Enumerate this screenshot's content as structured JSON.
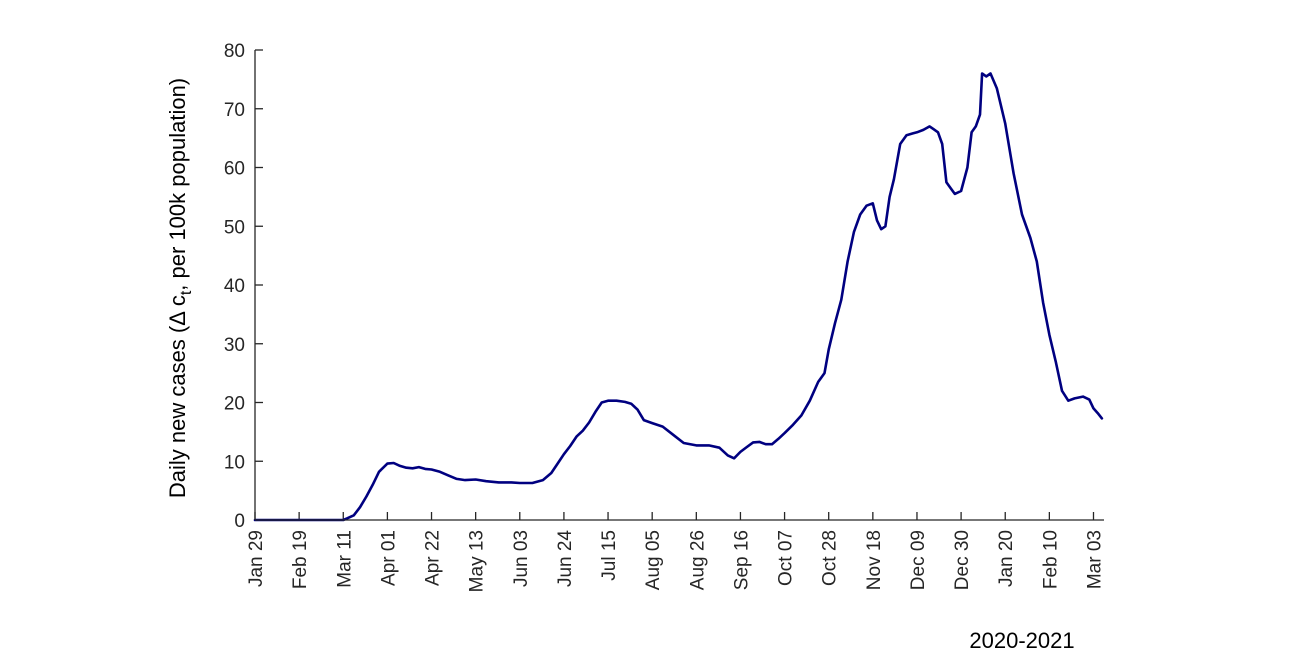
{
  "chart_data": {
    "type": "line",
    "title": "",
    "ylabel_parts": {
      "before": "Daily new cases (",
      "delta": "Δ",
      "c": " c",
      "subscript": "t",
      "after": ", per 100k population)"
    },
    "xlabel": "2020-2021",
    "ylim": [
      0,
      80
    ],
    "yticks": [
      "0",
      "10",
      "20",
      "30",
      "40",
      "50",
      "60",
      "70",
      "80"
    ],
    "xlim": [
      "2020-01-29",
      "2021-03-08"
    ],
    "xticks": [
      {
        "date": "2020-01-29",
        "label": "Jan 29"
      },
      {
        "date": "2020-02-19",
        "label": "Feb 19"
      },
      {
        "date": "2020-03-11",
        "label": "Mar 11"
      },
      {
        "date": "2020-04-01",
        "label": "Apr 01"
      },
      {
        "date": "2020-04-22",
        "label": "Apr 22"
      },
      {
        "date": "2020-05-13",
        "label": "May 13"
      },
      {
        "date": "2020-06-03",
        "label": "Jun 03"
      },
      {
        "date": "2020-06-24",
        "label": "Jun 24"
      },
      {
        "date": "2020-07-15",
        "label": "Jul 15"
      },
      {
        "date": "2020-08-05",
        "label": "Aug 05"
      },
      {
        "date": "2020-08-26",
        "label": "Aug 26"
      },
      {
        "date": "2020-09-16",
        "label": "Sep 16"
      },
      {
        "date": "2020-10-07",
        "label": "Oct 07"
      },
      {
        "date": "2020-10-28",
        "label": "Oct 28"
      },
      {
        "date": "2020-11-18",
        "label": "Nov 18"
      },
      {
        "date": "2020-12-09",
        "label": "Dec 09"
      },
      {
        "date": "2020-12-30",
        "label": "Dec 30"
      },
      {
        "date": "2021-01-20",
        "label": "Jan 20"
      },
      {
        "date": "2021-02-10",
        "label": "Feb 10"
      },
      {
        "date": "2021-03-03",
        "label": "Mar 03"
      }
    ],
    "grid": false,
    "colors": {
      "line": "#000080",
      "axis": "#262626"
    },
    "series": [
      {
        "x": [
          "2020-01-29",
          "2020-02-19",
          "2020-03-11",
          "2020-03-13",
          "2020-03-16",
          "2020-03-19",
          "2020-03-22",
          "2020-03-25",
          "2020-03-28",
          "2020-04-01",
          "2020-04-04",
          "2020-04-07",
          "2020-04-10",
          "2020-04-13",
          "2020-04-16",
          "2020-04-19",
          "2020-04-22",
          "2020-04-26",
          "2020-04-30",
          "2020-05-04",
          "2020-05-08",
          "2020-05-13",
          "2020-05-18",
          "2020-05-24",
          "2020-05-30",
          "2020-06-03",
          "2020-06-09",
          "2020-06-14",
          "2020-06-18",
          "2020-06-21",
          "2020-06-24",
          "2020-06-27",
          "2020-06-30",
          "2020-07-03",
          "2020-07-06",
          "2020-07-09",
          "2020-07-12",
          "2020-07-15",
          "2020-07-19",
          "2020-07-23",
          "2020-07-26",
          "2020-07-29",
          "2020-08-01",
          "2020-08-05",
          "2020-08-10",
          "2020-08-15",
          "2020-08-20",
          "2020-08-26",
          "2020-09-01",
          "2020-09-06",
          "2020-09-10",
          "2020-09-13",
          "2020-09-16",
          "2020-09-19",
          "2020-09-22",
          "2020-09-25",
          "2020-09-28",
          "2020-10-01",
          "2020-10-04",
          "2020-10-07",
          "2020-10-11",
          "2020-10-15",
          "2020-10-19",
          "2020-10-23",
          "2020-10-26",
          "2020-10-28",
          "2020-10-31",
          "2020-11-03",
          "2020-11-06",
          "2020-11-09",
          "2020-11-12",
          "2020-11-15",
          "2020-11-18",
          "2020-11-20",
          "2020-11-22",
          "2020-11-24",
          "2020-11-26",
          "2020-11-28",
          "2020-12-01",
          "2020-12-04",
          "2020-12-07",
          "2020-12-09",
          "2020-12-12",
          "2020-12-15",
          "2020-12-17",
          "2020-12-19",
          "2020-12-21",
          "2020-12-23",
          "2020-12-25",
          "2020-12-27",
          "2020-12-30",
          "2021-01-02",
          "2021-01-04",
          "2021-01-06",
          "2021-01-08",
          "2021-01-09",
          "2021-01-11",
          "2021-01-13",
          "2021-01-16",
          "2021-01-20",
          "2021-01-24",
          "2021-01-28",
          "2021-02-01",
          "2021-02-04",
          "2021-02-07",
          "2021-02-10",
          "2021-02-13",
          "2021-02-16",
          "2021-02-19",
          "2021-02-22",
          "2021-02-26",
          "2021-03-01",
          "2021-03-03",
          "2021-03-05",
          "2021-03-07"
        ],
        "y": [
          0,
          0,
          0,
          0.3,
          0.8,
          2.2,
          4.0,
          6.0,
          8.2,
          9.6,
          9.7,
          9.2,
          8.9,
          8.8,
          9.0,
          8.7,
          8.6,
          8.2,
          7.6,
          7.0,
          6.8,
          6.9,
          6.6,
          6.4,
          6.4,
          6.3,
          6.3,
          6.8,
          8.0,
          9.6,
          11.2,
          12.6,
          14.2,
          15.2,
          16.6,
          18.4,
          20.0,
          20.3,
          20.3,
          20.1,
          19.8,
          18.8,
          17.0,
          16.5,
          15.9,
          14.5,
          13.1,
          12.7,
          12.7,
          12.3,
          11.0,
          10.5,
          11.6,
          12.4,
          13.2,
          13.3,
          12.9,
          12.9,
          13.8,
          14.8,
          16.2,
          17.8,
          20.3,
          23.5,
          25.0,
          29.0,
          33.5,
          37.5,
          44.0,
          49.0,
          52.0,
          53.5,
          53.9,
          51.0,
          49.5,
          50.0,
          55.0,
          58.0,
          64.0,
          65.5,
          65.8,
          66.0,
          66.4,
          67.0,
          66.5,
          66.0,
          64.0,
          57.5,
          56.5,
          55.5,
          56.0,
          60.0,
          66.0,
          67.0,
          69.0,
          76.0,
          75.5,
          76.0,
          73.5,
          67.5,
          59.0,
          52.0,
          48.0,
          44.0,
          37.0,
          31.5,
          27.0,
          22.0,
          20.3,
          20.7,
          21.0,
          20.5,
          19.0,
          18.2,
          17.3
        ]
      }
    ]
  }
}
